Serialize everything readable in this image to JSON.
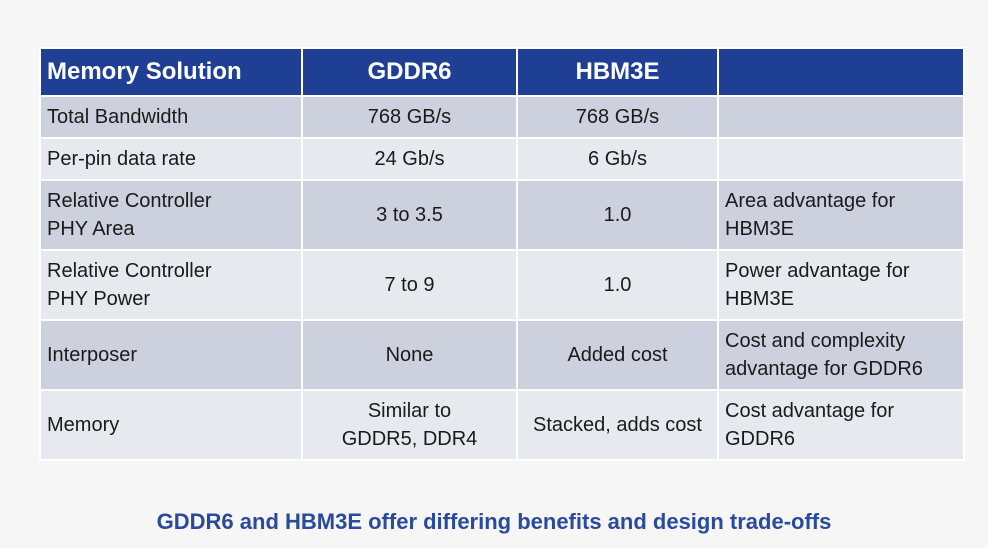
{
  "table": {
    "headers": [
      "Memory Solution",
      "GDDR6",
      "HBM3E",
      ""
    ],
    "rows": [
      {
        "label": [
          "Total Bandwidth"
        ],
        "gddr6": [
          "768 GB/s"
        ],
        "hbm3e": [
          "768 GB/s"
        ],
        "note": []
      },
      {
        "label": [
          "Per-pin data rate"
        ],
        "gddr6": [
          "24 Gb/s"
        ],
        "hbm3e": [
          "6 Gb/s"
        ],
        "note": []
      },
      {
        "label": [
          "Relative Controller",
          "PHY Area"
        ],
        "gddr6": [
          "3 to 3.5"
        ],
        "hbm3e": [
          "1.0"
        ],
        "note": [
          "Area advantage for",
          "HBM3E"
        ]
      },
      {
        "label": [
          "Relative Controller",
          "PHY Power"
        ],
        "gddr6": [
          "7 to 9"
        ],
        "hbm3e": [
          "1.0"
        ],
        "note": [
          "Power advantage for",
          "HBM3E"
        ]
      },
      {
        "label": [
          "Interposer"
        ],
        "gddr6": [
          "None"
        ],
        "hbm3e": [
          "Added cost"
        ],
        "note": [
          "Cost and complexity",
          "advantage for GDDR6"
        ]
      },
      {
        "label": [
          "Memory"
        ],
        "gddr6": [
          "Similar to",
          "GDDR5, DDR4"
        ],
        "hbm3e": [
          "Stacked, adds cost"
        ],
        "note": [
          "Cost advantage for",
          "GDDR6"
        ]
      }
    ]
  },
  "caption": "GDDR6 and HBM3E offer differing benefits and design trade-offs",
  "colors": {
    "header_bg": "#1f3f95",
    "row_dark": "#cdd0dd",
    "row_light": "#e8e9ef",
    "caption": "#2a4a9c"
  }
}
